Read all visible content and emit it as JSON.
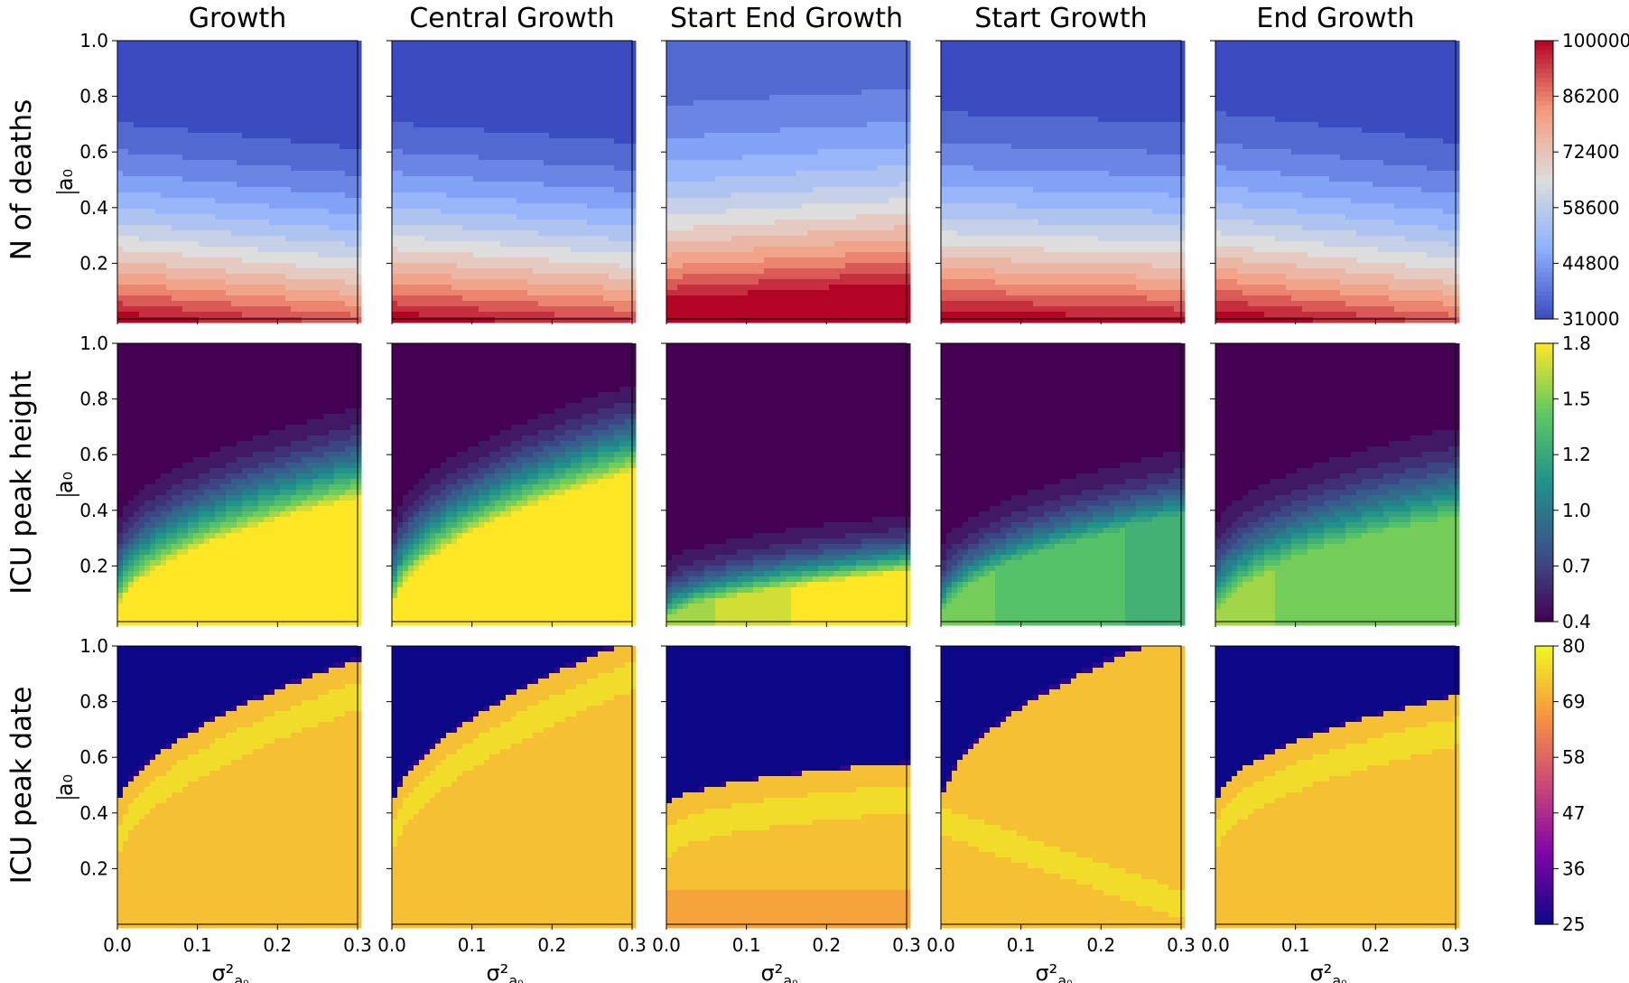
{
  "figure": {
    "columns": [
      "Growth",
      "Central Growth",
      "Start End Growth",
      "Start Growth",
      "End Growth"
    ],
    "rows": [
      "N of deaths",
      "ICU peak height",
      "ICU peak date"
    ],
    "ylabel": "a₀",
    "xlabel": "σ²",
    "xlabel_sub": "a₀"
  },
  "chart_data": {
    "type": "heatmap",
    "x_range": [
      0.0,
      0.3
    ],
    "y_range": [
      0.0,
      1.0
    ],
    "x_ticks": [
      "0.0",
      "0.1",
      "0.2",
      "0.3"
    ],
    "y_ticks": [
      "0.2",
      "0.4",
      "0.6",
      "0.8",
      "1.0"
    ],
    "grid": false,
    "colorbars": [
      {
        "row": "N of deaths",
        "colormap": "coolwarm",
        "min": 31000,
        "max": 100000,
        "ticks": [
          "100000",
          "86200",
          "72400",
          "58600",
          "44800",
          "31000"
        ]
      },
      {
        "row": "ICU peak height",
        "colormap": "viridis",
        "min": 0.4,
        "max": 1.8,
        "ticks": [
          "1.8",
          "1.5",
          "1.2",
          "1.0",
          "0.7",
          "0.4"
        ]
      },
      {
        "row": "ICU peak date",
        "colormap": "plasma",
        "min": 25,
        "max": 80,
        "ticks": [
          "80",
          "69",
          "58",
          "47",
          "36",
          "25"
        ]
      }
    ],
    "levels": 15
  }
}
